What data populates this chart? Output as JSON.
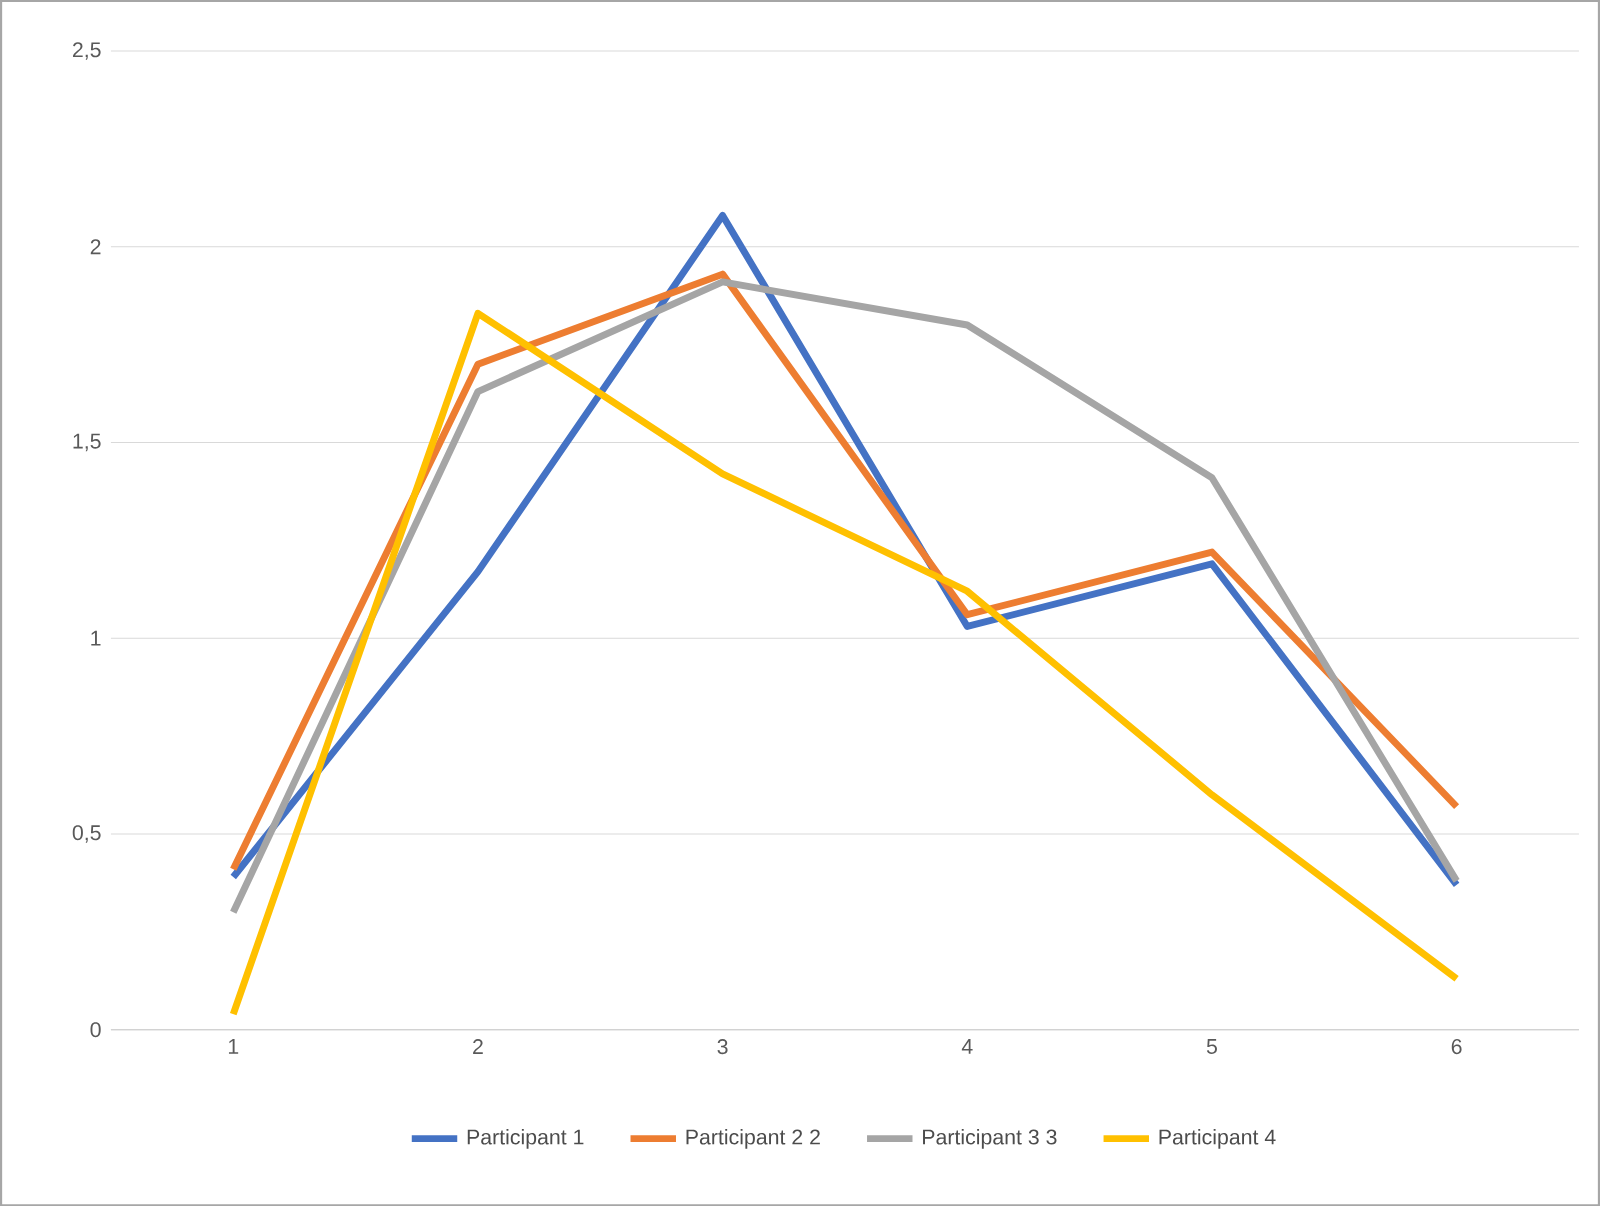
{
  "chart_data": {
    "type": "line",
    "categories": [
      "1",
      "2",
      "3",
      "4",
      "5",
      "6"
    ],
    "series": [
      {
        "name": "Participant 1",
        "color": "#4472c4",
        "values": [
          0.39,
          1.17,
          2.08,
          1.03,
          1.19,
          0.37
        ]
      },
      {
        "name": "Participant 2 2",
        "color": "#ed7d31",
        "values": [
          0.41,
          1.7,
          1.93,
          1.06,
          1.22,
          0.57
        ]
      },
      {
        "name": "Participant 3 3",
        "color": "#a5a5a5",
        "values": [
          0.3,
          1.63,
          1.91,
          1.8,
          1.41,
          0.38
        ]
      },
      {
        "name": "Participant 4",
        "color": "#ffc000",
        "values": [
          0.04,
          1.83,
          1.42,
          1.12,
          0.6,
          0.13
        ]
      }
    ],
    "ylim": [
      0,
      2.5
    ],
    "yticks": [
      0,
      {
        "value": 0.5,
        "label": "0,5"
      },
      1,
      {
        "value": 1.5,
        "label": "1,5"
      },
      2,
      {
        "value": 2.5,
        "label": "2,5"
      }
    ],
    "grid": "y",
    "legend": "bottom",
    "marker": "none",
    "line_style": "solid"
  }
}
